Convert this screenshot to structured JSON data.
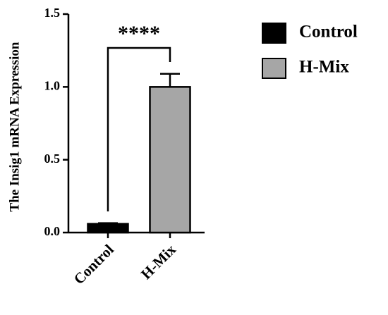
{
  "chart_data": {
    "type": "bar",
    "ylabel": "The Insig1 mRNA Expression",
    "categories": [
      "Control",
      "H-Mix"
    ],
    "series": [
      {
        "name": "Control",
        "color": "#000000"
      },
      {
        "name": "H-Mix",
        "color": "#a6a6a6"
      }
    ],
    "values": [
      0.06,
      1.0
    ],
    "errors": [
      0.005,
      0.09
    ],
    "ylim": [
      0,
      1.5
    ],
    "yticks": [
      {
        "value": 0,
        "label": "0.0"
      },
      {
        "value": 0.5,
        "label": "0.5"
      },
      {
        "value": 1,
        "label": "1.0"
      },
      {
        "value": 1.5,
        "label": "1.5"
      }
    ],
    "annotation": "****",
    "legend": "right"
  }
}
